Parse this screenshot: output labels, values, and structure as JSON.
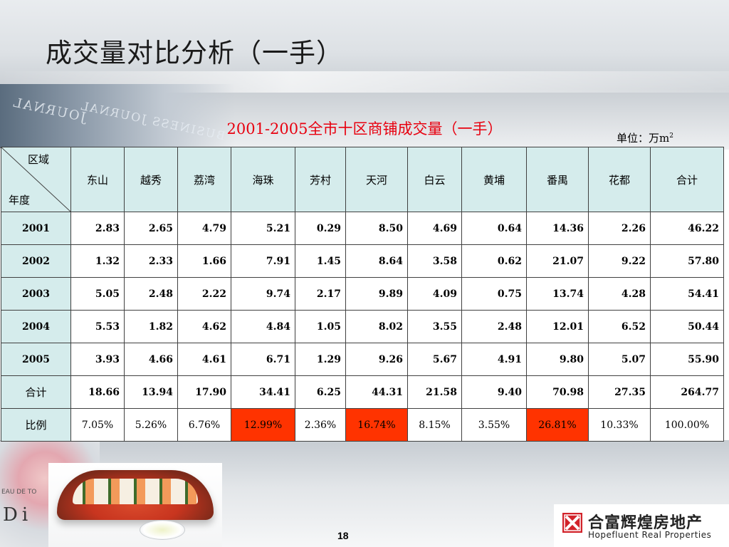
{
  "slide": {
    "title": "成交量对比分析（一手）",
    "page_number": "18"
  },
  "table": {
    "title": "2001-2005全市十区商铺成交量（一手）",
    "unit_prefix": "单位：万m",
    "unit_sup": "2",
    "corner_top": "区域",
    "corner_bottom": "年度",
    "columns": [
      "东山",
      "越秀",
      "荔湾",
      "海珠",
      "芳村",
      "天河",
      "白云",
      "黄埔",
      "番禺",
      "花都",
      "合计"
    ],
    "rows": [
      {
        "label": "2001",
        "values": [
          "2.83",
          "2.65",
          "4.79",
          "5.21",
          "0.29",
          "8.50",
          "4.69",
          "0.64",
          "14.36",
          "2.26",
          "46.22"
        ]
      },
      {
        "label": "2002",
        "values": [
          "1.32",
          "2.33",
          "1.66",
          "7.91",
          "1.45",
          "8.64",
          "3.58",
          "0.62",
          "21.07",
          "9.22",
          "57.80"
        ]
      },
      {
        "label": "2003",
        "values": [
          "5.05",
          "2.48",
          "2.22",
          "9.74",
          "2.17",
          "9.89",
          "4.09",
          "0.75",
          "13.74",
          "4.28",
          "54.41"
        ]
      },
      {
        "label": "2004",
        "values": [
          "5.53",
          "1.82",
          "4.62",
          "4.84",
          "1.05",
          "8.02",
          "3.55",
          "2.48",
          "12.01",
          "6.52",
          "50.44"
        ]
      },
      {
        "label": "2005",
        "values": [
          "3.93",
          "4.66",
          "4.61",
          "6.71",
          "1.29",
          "9.26",
          "5.67",
          "4.91",
          "9.80",
          "5.07",
          "55.90"
        ]
      },
      {
        "label": "合计",
        "values": [
          "18.66",
          "13.94",
          "17.90",
          "34.41",
          "6.25",
          "44.31",
          "21.58",
          "9.40",
          "70.98",
          "27.35",
          "264.77"
        ]
      },
      {
        "label": "比例",
        "values": [
          "7.05%",
          "5.26%",
          "6.76%",
          "12.99%",
          "2.36%",
          "16.74%",
          "8.15%",
          "3.55%",
          "26.81%",
          "10.33%",
          "100.00%"
        ]
      }
    ],
    "highlight_color": "#ff3300",
    "header_bg": "#d5ecec",
    "title_color": "#e8000f"
  },
  "logo": {
    "cn": "合富辉煌房地产",
    "en": "Hopefluent Real Properties",
    "color": "#d2232a"
  },
  "decor": {
    "journal_text_1": "JOURNAL",
    "journal_text_2": "BUSINESS JOURNAL",
    "photo_text_small": "EAU DE TO",
    "photo_text_big": "Di"
  }
}
